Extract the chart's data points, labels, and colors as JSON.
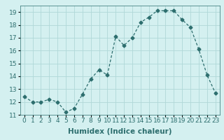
{
  "x": [
    0,
    1,
    2,
    3,
    4,
    5,
    6,
    7,
    8,
    9,
    10,
    11,
    12,
    13,
    14,
    15,
    16,
    17,
    18,
    19,
    20,
    21,
    22,
    23
  ],
  "y": [
    12.4,
    12.0,
    12.0,
    12.2,
    12.0,
    11.2,
    11.5,
    12.6,
    13.8,
    14.5,
    14.1,
    17.1,
    16.4,
    17.0,
    18.2,
    18.6,
    19.1,
    19.1,
    19.1,
    18.4,
    17.8,
    16.1,
    14.1,
    12.7
  ],
  "xlabel": "Humidex (Indice chaleur)",
  "ylim": [
    11,
    19.5
  ],
  "xlim": [
    -0.5,
    23.5
  ],
  "yticks": [
    11,
    12,
    13,
    14,
    15,
    16,
    17,
    18,
    19
  ],
  "xticks": [
    0,
    1,
    2,
    3,
    4,
    5,
    6,
    7,
    8,
    9,
    10,
    11,
    12,
    13,
    14,
    15,
    16,
    17,
    18,
    19,
    20,
    21,
    22,
    23
  ],
  "line_color": "#2d6e6e",
  "marker": "D",
  "marker_size": 2.5,
  "bg_color": "#d4f0f0",
  "grid_color": "#b0d8d8",
  "tick_fontsize": 6.5,
  "xlabel_fontsize": 7.5
}
